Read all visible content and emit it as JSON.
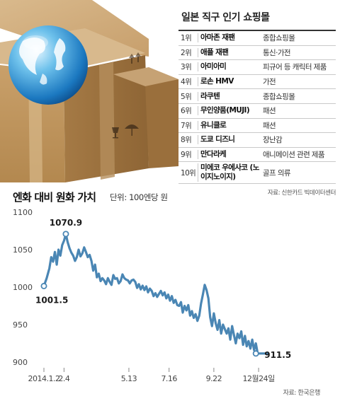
{
  "ranking": {
    "title": "일본 직구 인기 쇼핑몰",
    "rows": [
      {
        "rank": "1위",
        "name": "아마존 재팬",
        "category": "종합쇼핑몰"
      },
      {
        "rank": "2위",
        "name": "애플 재팬",
        "category": "통신·가전"
      },
      {
        "rank": "3위",
        "name": "아미아미",
        "category": "피규어 등 캐릭터 제품"
      },
      {
        "rank": "4위",
        "name": "로손 HMV",
        "category": "가전"
      },
      {
        "rank": "5위",
        "name": "라쿠텐",
        "category": "종합쇼핑몰"
      },
      {
        "rank": "6위",
        "name": "무인양품(MUJI)",
        "category": "패션"
      },
      {
        "rank": "7위",
        "name": "유니클로",
        "category": "패션"
      },
      {
        "rank": "8위",
        "name": "도쿄 디즈니",
        "category": "장난감"
      },
      {
        "rank": "9위",
        "name": "만다라케",
        "category": "애니메이션 관련 제품"
      },
      {
        "rank": "10위",
        "name": "미에코 우에사코 (노이지노이지)",
        "category": "골프 의류"
      }
    ],
    "source": "자료: 신한카드 빅데이터센터"
  },
  "chart_data": {
    "type": "line",
    "title": "엔화 대비 원화 가치",
    "unit": "단위: 100엔당 원",
    "ylim": [
      900,
      1100
    ],
    "y_ticks": [
      1100,
      1050,
      1000,
      950,
      900
    ],
    "x_ticks": [
      "2014.1.2",
      "2.4",
      "5.13",
      "7.16",
      "9.22",
      "12월24일"
    ],
    "x_tick_positions": [
      0,
      22,
      93,
      137,
      186,
      235
    ],
    "x_range": [
      0,
      245
    ],
    "grid": false,
    "series": [
      {
        "x": [
          0,
          3,
          6,
          8,
          10,
          12,
          14,
          16,
          18,
          20,
          22,
          24,
          26,
          28,
          30,
          32,
          34,
          36,
          38,
          40,
          42,
          44,
          46,
          48,
          50,
          52,
          54,
          56,
          58,
          60,
          62,
          64,
          66,
          68,
          70,
          72,
          74,
          76,
          78,
          80,
          82,
          84,
          86,
          88,
          90,
          92,
          94,
          96,
          98,
          100,
          102,
          104,
          106,
          108,
          110,
          112,
          114,
          116,
          118,
          120,
          122,
          124,
          126,
          128,
          130,
          132,
          134,
          136,
          138,
          140,
          142,
          144,
          146,
          148,
          150,
          152,
          154,
          156,
          158,
          160,
          162,
          164,
          166,
          168,
          170,
          172,
          174,
          176,
          178,
          180,
          182,
          184,
          186,
          188,
          190,
          192,
          194,
          196,
          198,
          200,
          202,
          204,
          206,
          208,
          210,
          212,
          214,
          216,
          218,
          220,
          222,
          224,
          226,
          228,
          230,
          232,
          234,
          236,
          238,
          240,
          242,
          244,
          245
        ],
        "values": [
          1001.5,
          1012,
          1025,
          1040,
          1034,
          1047,
          1030,
          1050,
          1042,
          1056,
          1062,
          1070.9,
          1060,
          1052,
          1046,
          1042,
          1035,
          1040,
          1050,
          1041,
          1045,
          1053,
          1047,
          1040,
          1043,
          1035,
          1022,
          1030,
          1013,
          1018,
          1008,
          1012,
          1009,
          1004,
          1012,
          1007,
          1003,
          1016,
          1011,
          1012,
          1005,
          1008,
          1017,
          1012,
          1010,
          1009,
          1005,
          1009,
          1010,
          1007,
          999,
          1004,
          997,
          1002,
          996,
          1001,
          993,
          998,
          995,
          988,
          992,
          987,
          991,
          995,
          989,
          993,
          985,
          990,
          982,
          988,
          979,
          983,
          976,
          975,
          980,
          966,
          975,
          969,
          976,
          962,
          968,
          959,
          964,
          955,
          962,
          978,
          990,
          1003,
          996,
          985,
          960,
          948,
          965,
          952,
          943,
          956,
          938,
          950,
          944,
          938,
          945,
          930,
          948,
          936,
          925,
          938,
          932,
          941,
          923,
          935,
          921,
          928,
          918,
          930,
          916,
          925,
          911.5,
          911.5,
          911.5,
          911.5,
          911.5,
          911.5,
          911.5
        ]
      }
    ],
    "annotations": [
      {
        "label": "1070.9",
        "x": 24,
        "y": 1070.9
      },
      {
        "label": "1001.5",
        "x": 0,
        "y": 1001.5
      },
      {
        "label": "911.5",
        "x": 232,
        "y": 911.5
      }
    ],
    "source": "자료: 한국은행"
  },
  "colors": {
    "line": "#4a86b4",
    "marker_fill": "#ffffff"
  }
}
